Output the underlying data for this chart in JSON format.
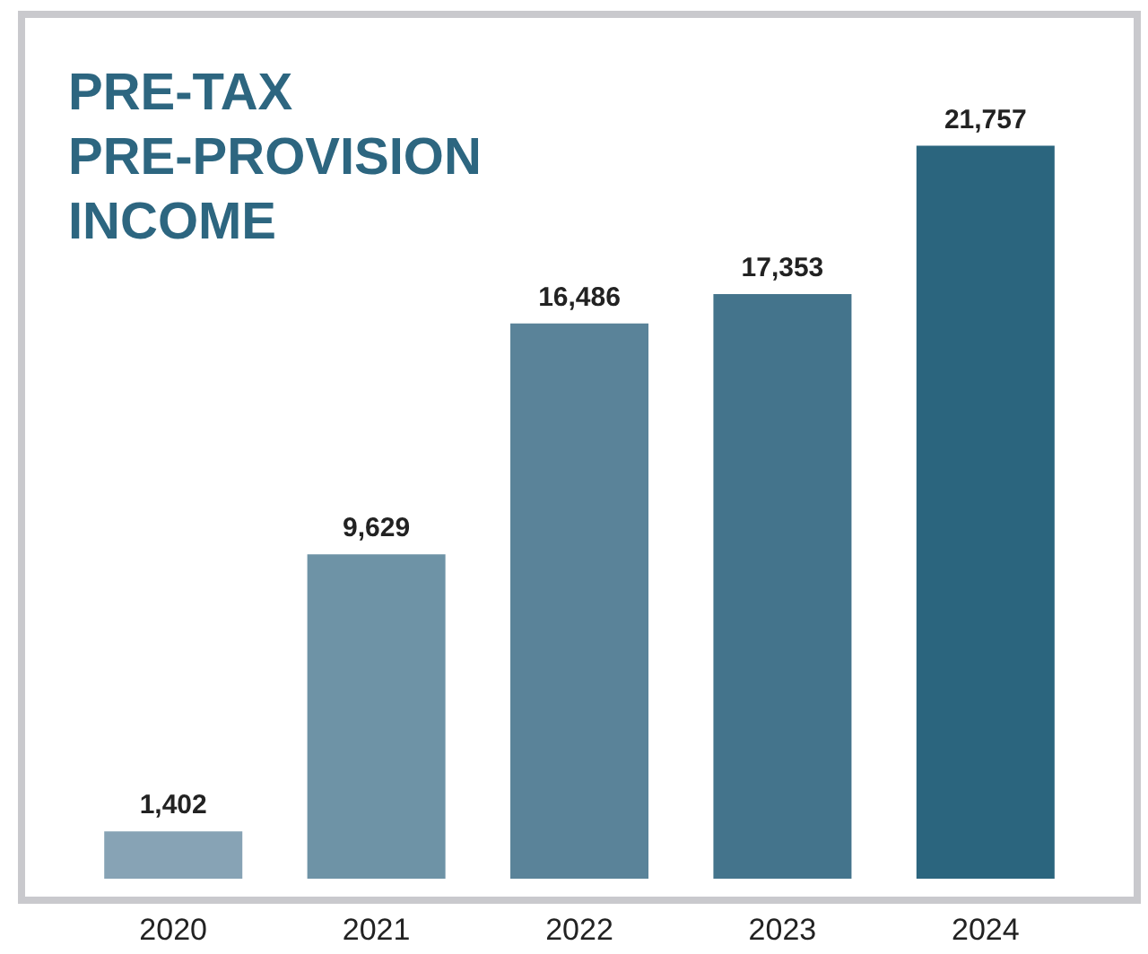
{
  "chart_data": {
    "type": "bar",
    "title": "PRE-TAX\nPRE-PROVISION\nINCOME",
    "categories": [
      "2020",
      "2021",
      "2022",
      "2023",
      "2024"
    ],
    "values": [
      1402,
      9629,
      16486,
      17353,
      21757
    ],
    "colors": [
      "#87a3b5",
      "#6e93a6",
      "#5a8399",
      "#44748c",
      "#2b657e"
    ],
    "value_labels": [
      "1,402",
      "9,629",
      "16,486",
      "17,353",
      "21,757"
    ],
    "grid": false,
    "legend": false
  }
}
